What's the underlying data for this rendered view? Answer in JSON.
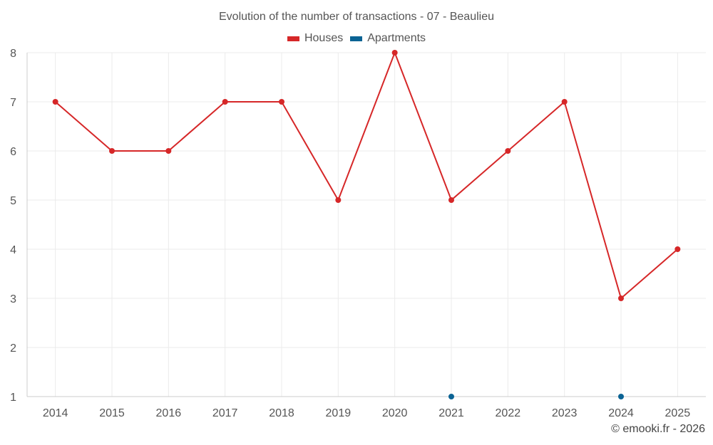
{
  "chart_data": {
    "type": "line",
    "title": "Evolution of the number of transactions - 07 - Beaulieu",
    "categories": [
      "2014",
      "2015",
      "2016",
      "2017",
      "2018",
      "2019",
      "2020",
      "2021",
      "2022",
      "2023",
      "2024",
      "2025"
    ],
    "series": [
      {
        "name": "Houses",
        "color": "#d62728",
        "values": [
          7,
          6,
          6,
          7,
          7,
          5,
          8,
          5,
          6,
          7,
          3,
          4
        ]
      },
      {
        "name": "Apartments",
        "color": "#0b6394",
        "values": [
          null,
          null,
          null,
          null,
          null,
          null,
          null,
          1,
          null,
          null,
          1,
          null
        ]
      }
    ],
    "ylim": [
      1,
      8
    ],
    "yticks": [
      "1",
      "2",
      "3",
      "4",
      "5",
      "6",
      "7",
      "8"
    ],
    "grid": true,
    "legend_position": "top-center"
  },
  "credit": "© emooki.fr - 2026"
}
